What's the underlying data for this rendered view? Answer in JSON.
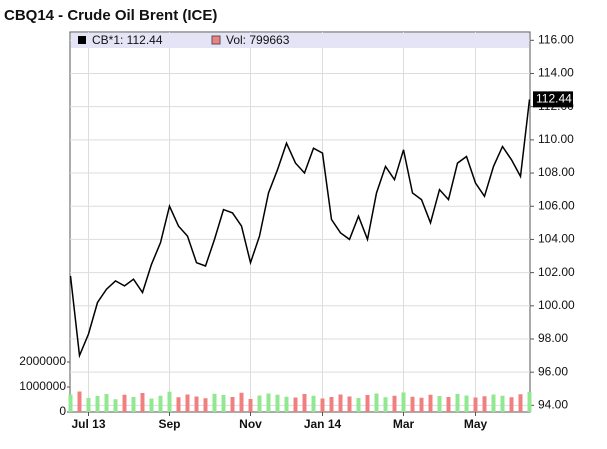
{
  "chart_data": {
    "type": "line",
    "title": "CBQ14 - Crude Oil Brent (ICE)",
    "categories": [
      null,
      null,
      "Jul 13",
      null,
      null,
      null,
      null,
      null,
      null,
      null,
      null,
      "Sep",
      null,
      null,
      null,
      null,
      null,
      null,
      null,
      null,
      "Nov",
      null,
      null,
      null,
      null,
      null,
      null,
      null,
      "Jan 14",
      null,
      null,
      null,
      null,
      null,
      null,
      null,
      null,
      "Mar",
      null,
      null,
      null,
      null,
      null,
      null,
      null,
      "May",
      null,
      null,
      null,
      null,
      null,
      null
    ],
    "series": [
      {
        "name": "CB*1: 112.44",
        "color": "#000000",
        "values": [
          101.8,
          97.0,
          98.3,
          100.2,
          101.0,
          101.5,
          101.2,
          101.6,
          100.8,
          102.5,
          103.8,
          106.0,
          104.8,
          104.2,
          102.6,
          102.4,
          104.0,
          105.8,
          105.6,
          104.8,
          102.6,
          104.2,
          106.8,
          108.2,
          109.8,
          108.6,
          108.0,
          109.5,
          109.2,
          105.2,
          104.4,
          104.0,
          105.4,
          104.0,
          106.8,
          108.4,
          107.6,
          109.4,
          106.8,
          106.4,
          105.0,
          107.0,
          106.4,
          108.6,
          109.0,
          107.4,
          106.6,
          108.4,
          109.6,
          108.8,
          107.8,
          112.44
        ]
      },
      {
        "name": "Vol: 799663",
        "color": "#f08080",
        "up_color": "#90e890",
        "axis": "y2",
        "values": [
          700000,
          820000,
          560000,
          640000,
          720000,
          510000,
          690000,
          600000,
          760000,
          540000,
          650000,
          810000,
          590000,
          700000,
          620000,
          550000,
          730000,
          680000,
          600000,
          770000,
          520000,
          660000,
          740000,
          690000,
          610000,
          580000,
          720000,
          650000,
          540000,
          600000,
          700000,
          620000,
          560000,
          680000,
          740000,
          590000,
          650000,
          780000,
          610000,
          570000,
          690000,
          640000,
          600000,
          720000,
          660000,
          580000,
          630000,
          700000,
          650000,
          590000,
          710000,
          799663
        ]
      }
    ],
    "ylim": [
      93.6,
      116.5
    ],
    "yticks": [
      {
        "value": 94,
        "label": "94.00"
      },
      {
        "value": 96,
        "label": "96.00"
      },
      {
        "value": 98,
        "label": "98.00"
      },
      {
        "value": 100,
        "label": "100.00"
      },
      {
        "value": 102,
        "label": "102.00"
      },
      {
        "value": 104,
        "label": "104.00"
      },
      {
        "value": 106,
        "label": "106.00"
      },
      {
        "value": 108,
        "label": "108.00"
      },
      {
        "value": 110,
        "label": "110.00"
      },
      {
        "value": 112,
        "label": "112.00"
      },
      {
        "value": 114,
        "label": "114.00"
      },
      {
        "value": 116,
        "label": "116.00"
      }
    ],
    "y2lim": [
      0,
      15200000
    ],
    "y2ticks": [
      0,
      1000000,
      2000000
    ],
    "grid": true
  }
}
